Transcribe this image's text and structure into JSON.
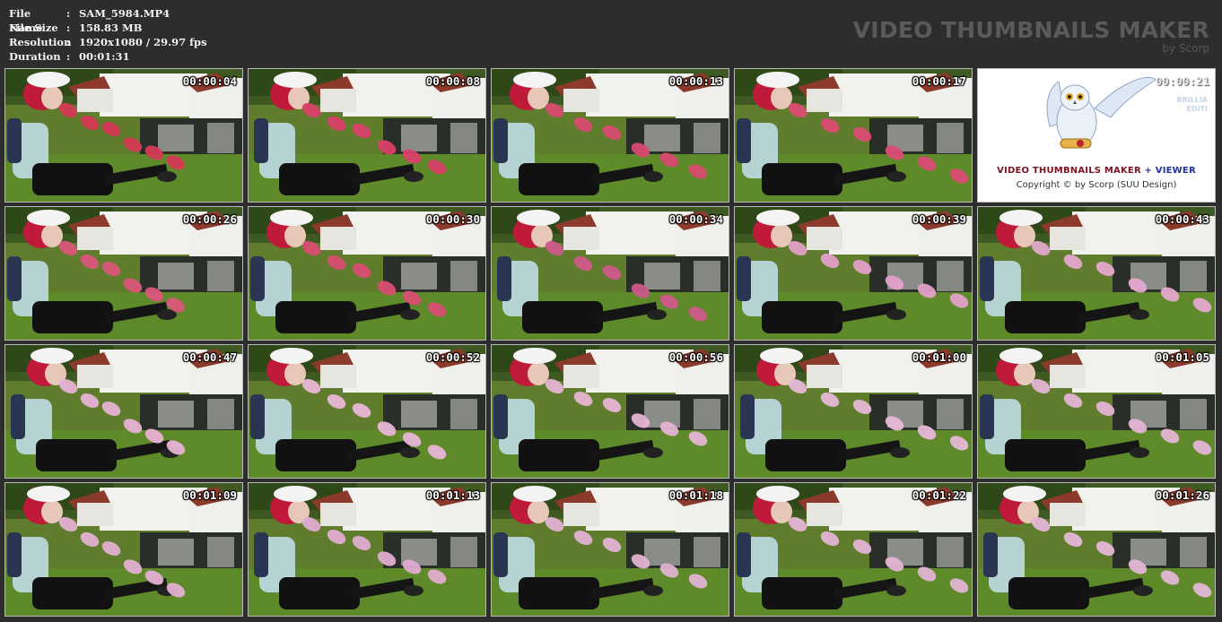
{
  "info": {
    "rows": [
      {
        "key": "File Name",
        "value": "SAM_5984.MP4"
      },
      {
        "key": "File Size",
        "value": "158.83 MB"
      },
      {
        "key": "Resolution",
        "value": "1920x1080 / 29.97 fps"
      },
      {
        "key": "Duration",
        "value": "00:01:31"
      }
    ],
    "separator": ":"
  },
  "brand": {
    "title": "VIDEO THUMBNAILS MAKER",
    "subtitle": "by Scorp"
  },
  "logo_tile": {
    "line1_a": "VIDEO THUMBNAILS MAKER",
    "line1_b": "+ VIEWER",
    "line2": "Copyright © by Scorp (SUU Design)",
    "watermark1": "BRILLIA",
    "watermark2": "EDITI"
  },
  "thumbnails": [
    {
      "time": "00:00:04",
      "balloon": "#d43a55"
    },
    {
      "time": "00:00:08",
      "balloon": "#d94068"
    },
    {
      "time": "00:00:13",
      "balloon": "#d84a70"
    },
    {
      "time": "00:00:17",
      "balloon": "#db4c74"
    },
    {
      "time": "00:00:21",
      "logo": true
    },
    {
      "time": "00:00:26",
      "balloon": "#d9567a"
    },
    {
      "time": "00:00:30",
      "balloon": "#d94d72"
    },
    {
      "time": "00:00:34",
      "balloon": "#cf5a8a"
    },
    {
      "time": "00:00:39",
      "balloon": "#e2a0c8"
    },
    {
      "time": "00:00:43",
      "balloon": "#e4a8cc"
    },
    {
      "time": "00:00:47",
      "balloon": "#e7b2d4"
    },
    {
      "time": "00:00:52",
      "balloon": "#e8b6d6"
    },
    {
      "time": "00:00:56",
      "balloon": "#e6b4d4"
    },
    {
      "time": "00:01:00",
      "balloon": "#e6b8d6"
    },
    {
      "time": "00:01:05",
      "balloon": "#e4b4d4"
    },
    {
      "time": "00:01:09",
      "balloon": "#e3b0d2"
    },
    {
      "time": "00:01:13",
      "balloon": "#e0acd0"
    },
    {
      "time": "00:01:18",
      "balloon": "#e2b2d2"
    },
    {
      "time": "00:01:22",
      "balloon": "#e2b4d4"
    },
    {
      "time": "00:01:26",
      "balloon": "#e4b6d6"
    }
  ]
}
